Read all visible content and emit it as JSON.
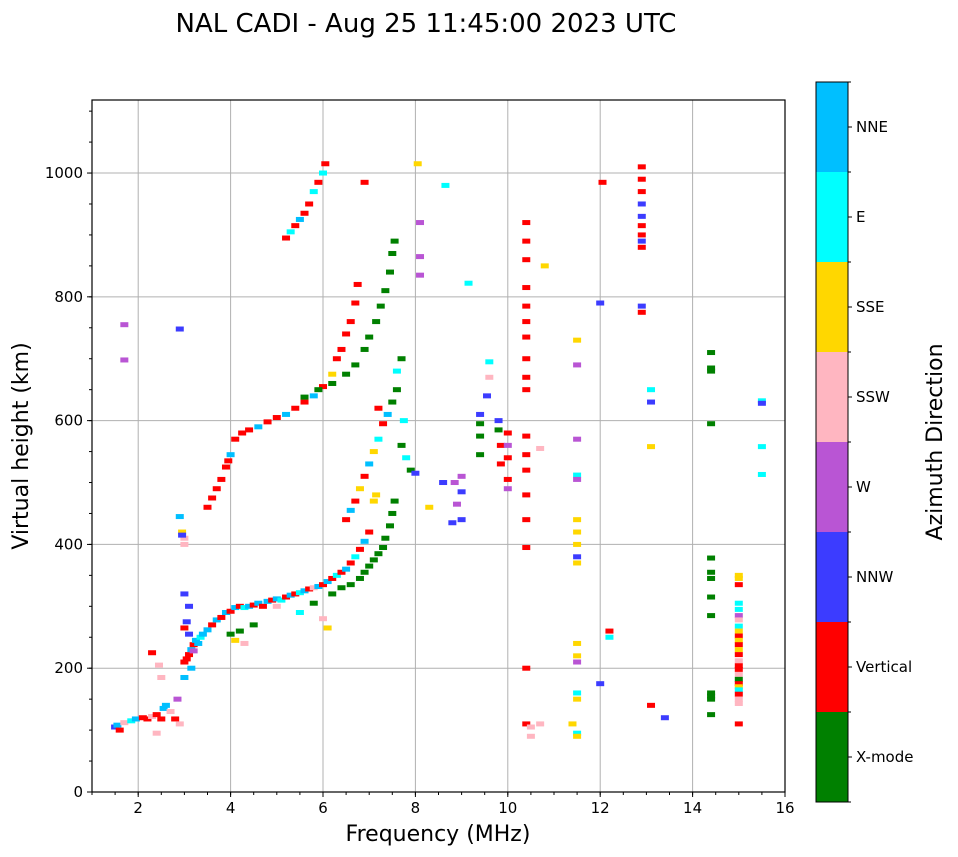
{
  "chart_data": {
    "type": "scatter",
    "title": "NAL CADI - Aug 25 11:45:00 2023 UTC",
    "xlabel": "Frequency (MHz)",
    "ylabel": "Virtual height (km)",
    "xlim": [
      1,
      16
    ],
    "ylim": [
      0,
      1118
    ],
    "xticks": [
      2,
      4,
      6,
      8,
      10,
      12,
      14,
      16
    ],
    "xtick_labels": [
      "2",
      "4",
      "6",
      "8",
      "10",
      "12",
      "14",
      "16"
    ],
    "yticks": [
      0,
      200,
      400,
      600,
      800,
      1000
    ],
    "ytick_labels": [
      "0",
      "200",
      "400",
      "600",
      "800",
      "1000"
    ],
    "grid": true,
    "colorbar": {
      "label": "Azimuth Direction",
      "placement": "right",
      "categories": [
        {
          "name": "X-mode",
          "color": "#008000"
        },
        {
          "name": "Vertical",
          "color": "#ff0000"
        },
        {
          "name": "NNW",
          "color": "#3c3cff"
        },
        {
          "name": "W",
          "color": "#b955d4"
        },
        {
          "name": "SSW",
          "color": "#ffb6c1"
        },
        {
          "name": "SSE",
          "color": "#ffd700"
        },
        {
          "name": "E",
          "color": "#00ffff"
        },
        {
          "name": "NNE",
          "color": "#00bfff"
        }
      ]
    },
    "points_note": "each point: [frequency MHz, virtual height km, azimuth category index into colorbar.categories]",
    "points": [
      [
        1.5,
        105,
        2
      ],
      [
        1.55,
        108,
        7
      ],
      [
        1.6,
        100,
        1
      ],
      [
        1.7,
        112,
        4
      ],
      [
        1.85,
        115,
        6
      ],
      [
        1.95,
        118,
        7
      ],
      [
        2.1,
        120,
        1
      ],
      [
        2.2,
        118,
        1
      ],
      [
        2.3,
        122,
        4
      ],
      [
        2.4,
        125,
        1
      ],
      [
        2.5,
        118,
        1
      ],
      [
        2.55,
        135,
        7
      ],
      [
        2.6,
        140,
        7
      ],
      [
        2.7,
        130,
        4
      ],
      [
        2.8,
        118,
        1
      ],
      [
        2.85,
        150,
        3
      ],
      [
        2.9,
        110,
        4
      ],
      [
        2.4,
        95,
        4
      ],
      [
        2.3,
        225,
        1
      ],
      [
        2.45,
        205,
        4
      ],
      [
        2.5,
        185,
        4
      ],
      [
        1.7,
        755,
        3
      ],
      [
        1.7,
        698,
        3
      ],
      [
        2.9,
        748,
        2
      ],
      [
        2.9,
        445,
        7
      ],
      [
        2.95,
        420,
        5
      ],
      [
        3.0,
        410,
        4
      ],
      [
        3.0,
        400,
        4
      ],
      [
        2.95,
        415,
        2
      ],
      [
        3.0,
        210,
        1
      ],
      [
        3.05,
        215,
        1
      ],
      [
        3.1,
        222,
        1
      ],
      [
        3.15,
        230,
        7
      ],
      [
        3.2,
        238,
        1
      ],
      [
        3.25,
        245,
        7
      ],
      [
        3.3,
        240,
        7
      ],
      [
        3.1,
        255,
        2
      ],
      [
        3.0,
        265,
        1
      ],
      [
        3.05,
        275,
        2
      ],
      [
        3.1,
        300,
        2
      ],
      [
        3.0,
        320,
        2
      ],
      [
        3.15,
        200,
        7
      ],
      [
        3.0,
        185,
        7
      ],
      [
        3.2,
        228,
        3
      ],
      [
        3.35,
        250,
        6
      ],
      [
        3.4,
        255,
        7
      ],
      [
        3.5,
        262,
        7
      ],
      [
        3.6,
        270,
        1
      ],
      [
        3.7,
        278,
        7
      ],
      [
        3.8,
        282,
        1
      ],
      [
        3.9,
        290,
        7
      ],
      [
        4.0,
        292,
        1
      ],
      [
        4.1,
        298,
        7
      ],
      [
        4.2,
        300,
        1
      ],
      [
        4.3,
        298,
        6
      ],
      [
        4.4,
        300,
        7
      ],
      [
        4.5,
        302,
        1
      ],
      [
        4.6,
        305,
        7
      ],
      [
        4.7,
        300,
        1
      ],
      [
        4.8,
        308,
        7
      ],
      [
        4.9,
        310,
        1
      ],
      [
        5.0,
        312,
        7
      ],
      [
        5.1,
        310,
        6
      ],
      [
        5.2,
        315,
        1
      ],
      [
        5.3,
        318,
        7
      ],
      [
        5.4,
        320,
        1
      ],
      [
        5.5,
        322,
        6
      ],
      [
        5.6,
        325,
        7
      ],
      [
        5.7,
        328,
        1
      ],
      [
        5.8,
        330,
        4
      ],
      [
        5.9,
        332,
        7
      ],
      [
        6.0,
        335,
        1
      ],
      [
        6.1,
        340,
        7
      ],
      [
        6.2,
        345,
        1
      ],
      [
        6.3,
        350,
        6
      ],
      [
        6.4,
        355,
        1
      ],
      [
        6.5,
        360,
        7
      ],
      [
        6.6,
        370,
        1
      ],
      [
        6.7,
        380,
        6
      ],
      [
        6.8,
        392,
        1
      ],
      [
        6.9,
        405,
        7
      ],
      [
        7.0,
        420,
        1
      ],
      [
        4.0,
        255,
        0
      ],
      [
        4.2,
        260,
        0
      ],
      [
        4.5,
        270,
        0
      ],
      [
        4.1,
        245,
        5
      ],
      [
        4.3,
        240,
        4
      ],
      [
        5.0,
        300,
        4
      ],
      [
        5.5,
        290,
        6
      ],
      [
        6.0,
        280,
        4
      ],
      [
        6.1,
        265,
        5
      ],
      [
        5.8,
        305,
        0
      ],
      [
        6.2,
        320,
        0
      ],
      [
        6.4,
        330,
        0
      ],
      [
        6.6,
        335,
        0
      ],
      [
        6.8,
        345,
        0
      ],
      [
        6.9,
        355,
        0
      ],
      [
        7.0,
        365,
        0
      ],
      [
        7.1,
        375,
        0
      ],
      [
        7.2,
        385,
        0
      ],
      [
        7.3,
        395,
        0
      ],
      [
        7.35,
        410,
        0
      ],
      [
        7.45,
        430,
        0
      ],
      [
        7.5,
        450,
        0
      ],
      [
        7.55,
        470,
        0
      ],
      [
        3.5,
        460,
        1
      ],
      [
        3.6,
        475,
        1
      ],
      [
        3.7,
        490,
        1
      ],
      [
        3.8,
        505,
        1
      ],
      [
        3.9,
        525,
        1
      ],
      [
        3.95,
        535,
        1
      ],
      [
        4.0,
        545,
        7
      ],
      [
        4.1,
        570,
        1
      ],
      [
        4.25,
        580,
        1
      ],
      [
        4.4,
        585,
        1
      ],
      [
        4.6,
        590,
        7
      ],
      [
        4.8,
        598,
        1
      ],
      [
        5.0,
        605,
        1
      ],
      [
        5.2,
        610,
        7
      ],
      [
        5.4,
        620,
        1
      ],
      [
        5.6,
        630,
        1
      ],
      [
        5.8,
        640,
        7
      ],
      [
        6.0,
        655,
        1
      ],
      [
        6.2,
        675,
        5
      ],
      [
        6.3,
        700,
        1
      ],
      [
        6.4,
        715,
        1
      ],
      [
        6.5,
        740,
        1
      ],
      [
        6.6,
        760,
        1
      ],
      [
        6.7,
        790,
        1
      ],
      [
        6.75,
        820,
        1
      ],
      [
        6.9,
        985,
        1
      ],
      [
        5.6,
        638,
        0
      ],
      [
        5.9,
        650,
        0
      ],
      [
        6.2,
        660,
        0
      ],
      [
        6.5,
        675,
        0
      ],
      [
        6.7,
        690,
        0
      ],
      [
        6.9,
        715,
        0
      ],
      [
        7.0,
        735,
        0
      ],
      [
        7.15,
        760,
        0
      ],
      [
        7.25,
        785,
        0
      ],
      [
        7.35,
        810,
        0
      ],
      [
        7.45,
        840,
        0
      ],
      [
        7.5,
        870,
        0
      ],
      [
        7.55,
        890,
        0
      ],
      [
        5.2,
        895,
        1
      ],
      [
        5.3,
        905,
        6
      ],
      [
        5.4,
        915,
        1
      ],
      [
        5.5,
        925,
        7
      ],
      [
        5.6,
        935,
        1
      ],
      [
        5.7,
        950,
        1
      ],
      [
        5.8,
        970,
        6
      ],
      [
        5.9,
        985,
        1
      ],
      [
        6.0,
        1000,
        6
      ],
      [
        6.05,
        1015,
        1
      ],
      [
        6.5,
        440,
        1
      ],
      [
        6.6,
        455,
        7
      ],
      [
        6.7,
        470,
        1
      ],
      [
        6.8,
        490,
        5
      ],
      [
        6.9,
        510,
        1
      ],
      [
        7.0,
        530,
        7
      ],
      [
        7.1,
        550,
        5
      ],
      [
        7.2,
        570,
        6
      ],
      [
        7.3,
        595,
        1
      ],
      [
        7.4,
        610,
        7
      ],
      [
        7.5,
        630,
        0
      ],
      [
        7.6,
        650,
        0
      ],
      [
        7.6,
        680,
        6
      ],
      [
        7.7,
        700,
        0
      ],
      [
        7.8,
        540,
        6
      ],
      [
        7.9,
        520,
        0
      ],
      [
        8.0,
        515,
        2
      ],
      [
        7.7,
        560,
        0
      ],
      [
        7.75,
        600,
        6
      ],
      [
        7.2,
        620,
        1
      ],
      [
        7.1,
        470,
        5
      ],
      [
        7.15,
        480,
        5
      ],
      [
        8.05,
        1015,
        5
      ],
      [
        8.65,
        980,
        6
      ],
      [
        8.1,
        920,
        3
      ],
      [
        8.1,
        865,
        3
      ],
      [
        8.1,
        835,
        3
      ],
      [
        9.15,
        822,
        6
      ],
      [
        8.85,
        500,
        3
      ],
      [
        9.0,
        510,
        3
      ],
      [
        9.0,
        485,
        2
      ],
      [
        8.9,
        465,
        3
      ],
      [
        9.0,
        440,
        2
      ],
      [
        8.6,
        500,
        2
      ],
      [
        8.3,
        460,
        5
      ],
      [
        8.8,
        435,
        2
      ],
      [
        9.4,
        610,
        2
      ],
      [
        9.4,
        595,
        0
      ],
      [
        9.4,
        575,
        0
      ],
      [
        9.4,
        545,
        0
      ],
      [
        9.6,
        695,
        6
      ],
      [
        9.6,
        670,
        4
      ],
      [
        9.55,
        640,
        2
      ],
      [
        9.8,
        600,
        2
      ],
      [
        9.8,
        585,
        0
      ],
      [
        9.85,
        560,
        1
      ],
      [
        9.85,
        530,
        1
      ],
      [
        10.0,
        580,
        1
      ],
      [
        10.0,
        560,
        3
      ],
      [
        10.0,
        540,
        1
      ],
      [
        10.0,
        505,
        1
      ],
      [
        10.0,
        490,
        3
      ],
      [
        10.4,
        920,
        1
      ],
      [
        10.4,
        890,
        1
      ],
      [
        10.4,
        860,
        1
      ],
      [
        10.4,
        815,
        1
      ],
      [
        10.4,
        785,
        1
      ],
      [
        10.4,
        760,
        1
      ],
      [
        10.4,
        735,
        1
      ],
      [
        10.4,
        700,
        1
      ],
      [
        10.4,
        670,
        1
      ],
      [
        10.4,
        650,
        1
      ],
      [
        10.4,
        575,
        1
      ],
      [
        10.4,
        545,
        1
      ],
      [
        10.4,
        520,
        1
      ],
      [
        10.4,
        480,
        1
      ],
      [
        10.4,
        440,
        1
      ],
      [
        10.4,
        395,
        1
      ],
      [
        10.4,
        200,
        1
      ],
      [
        10.4,
        110,
        1
      ],
      [
        10.5,
        105,
        4
      ],
      [
        10.5,
        90,
        4
      ],
      [
        10.7,
        555,
        4
      ],
      [
        10.8,
        850,
        5
      ],
      [
        10.7,
        110,
        4
      ],
      [
        11.5,
        730,
        5
      ],
      [
        11.5,
        690,
        3
      ],
      [
        11.5,
        570,
        3
      ],
      [
        11.5,
        512,
        6
      ],
      [
        11.5,
        505,
        3
      ],
      [
        11.5,
        440,
        5
      ],
      [
        11.5,
        420,
        5
      ],
      [
        11.5,
        400,
        5
      ],
      [
        11.5,
        380,
        2
      ],
      [
        11.5,
        370,
        5
      ],
      [
        11.5,
        240,
        5
      ],
      [
        11.5,
        220,
        5
      ],
      [
        11.5,
        210,
        3
      ],
      [
        11.5,
        160,
        6
      ],
      [
        11.5,
        150,
        5
      ],
      [
        11.4,
        110,
        5
      ],
      [
        11.5,
        95,
        6
      ],
      [
        11.5,
        90,
        5
      ],
      [
        12.05,
        985,
        1
      ],
      [
        12.0,
        790,
        2
      ],
      [
        12.2,
        260,
        1
      ],
      [
        12.2,
        250,
        6
      ],
      [
        12.0,
        175,
        2
      ],
      [
        12.9,
        1010,
        1
      ],
      [
        12.9,
        990,
        1
      ],
      [
        12.9,
        970,
        1
      ],
      [
        12.9,
        950,
        2
      ],
      [
        12.9,
        930,
        2
      ],
      [
        12.9,
        915,
        1
      ],
      [
        12.9,
        900,
        1
      ],
      [
        12.9,
        890,
        2
      ],
      [
        12.9,
        880,
        1
      ],
      [
        12.9,
        785,
        2
      ],
      [
        12.9,
        775,
        1
      ],
      [
        13.1,
        650,
        6
      ],
      [
        13.1,
        630,
        2
      ],
      [
        13.1,
        558,
        5
      ],
      [
        13.1,
        140,
        1
      ],
      [
        13.4,
        120,
        2
      ],
      [
        14.4,
        710,
        0
      ],
      [
        14.4,
        685,
        0
      ],
      [
        14.4,
        680,
        0
      ],
      [
        14.4,
        595,
        0
      ],
      [
        14.4,
        378,
        0
      ],
      [
        14.4,
        355,
        0
      ],
      [
        14.4,
        345,
        0
      ],
      [
        14.4,
        315,
        0
      ],
      [
        14.4,
        285,
        0
      ],
      [
        14.4,
        160,
        0
      ],
      [
        14.4,
        155,
        0
      ],
      [
        14.4,
        150,
        0
      ],
      [
        14.4,
        125,
        0
      ],
      [
        15.0,
        350,
        5
      ],
      [
        15.0,
        345,
        5
      ],
      [
        15.0,
        335,
        1
      ],
      [
        15.0,
        305,
        6
      ],
      [
        15.0,
        295,
        6
      ],
      [
        15.0,
        285,
        3
      ],
      [
        15.0,
        278,
        4
      ],
      [
        15.0,
        268,
        6
      ],
      [
        15.0,
        260,
        5
      ],
      [
        15.0,
        252,
        1
      ],
      [
        15.0,
        245,
        5
      ],
      [
        15.0,
        238,
        1
      ],
      [
        15.0,
        230,
        5
      ],
      [
        15.0,
        222,
        1
      ],
      [
        15.0,
        212,
        4
      ],
      [
        15.0,
        204,
        1
      ],
      [
        15.0,
        198,
        1
      ],
      [
        15.0,
        190,
        4
      ],
      [
        15.0,
        182,
        0
      ],
      [
        15.0,
        175,
        1
      ],
      [
        15.0,
        170,
        5
      ],
      [
        15.0,
        165,
        6
      ],
      [
        15.0,
        158,
        1
      ],
      [
        15.0,
        150,
        4
      ],
      [
        15.0,
        143,
        4
      ],
      [
        15.0,
        110,
        1
      ],
      [
        15.5,
        632,
        6
      ],
      [
        15.5,
        628,
        2
      ],
      [
        15.5,
        558,
        6
      ],
      [
        15.5,
        513,
        6
      ]
    ]
  }
}
